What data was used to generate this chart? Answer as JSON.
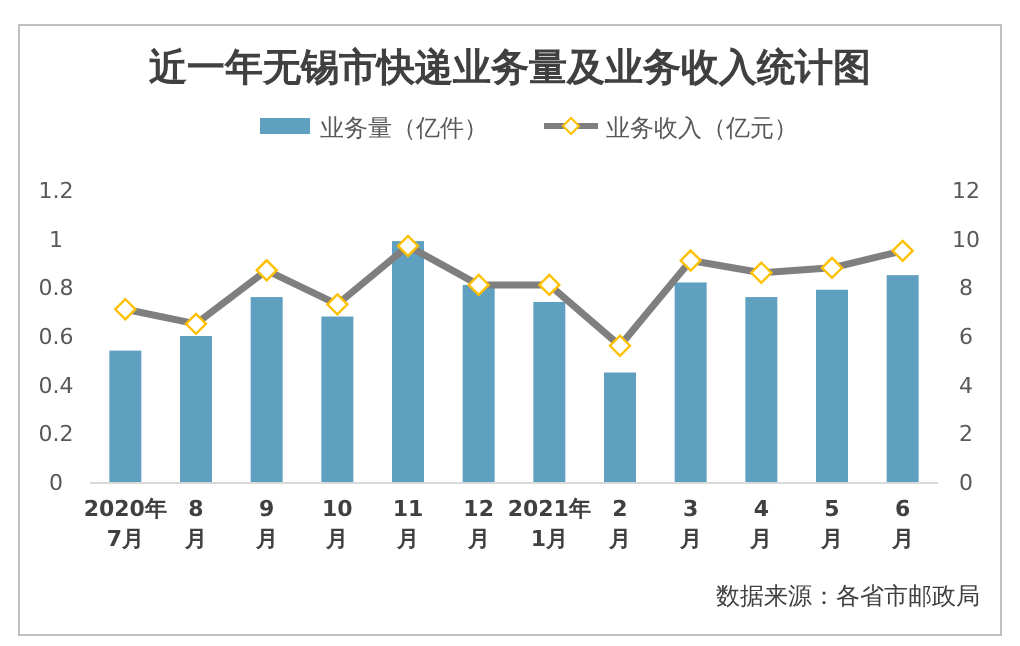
{
  "chart_data": {
    "type": "bar",
    "title": "近一年无锡市快递业务量及业务收入统计图",
    "categories": [
      "2020年\n7月",
      "8\n月",
      "9\n月",
      "10\n月",
      "11\n月",
      "12\n月",
      "2021年\n1月",
      "2\n月",
      "3\n月",
      "4\n月",
      "5\n月",
      "6\n月"
    ],
    "series": [
      {
        "name": "业务量（亿件）",
        "color": "#5fa0c0",
        "values": [
          0.54,
          0.6,
          0.76,
          0.68,
          0.99,
          0.81,
          0.74,
          0.45,
          0.82,
          0.76,
          0.79,
          0.85
        ]
      },
      {
        "name": "业务收入（亿元）",
        "type": "line",
        "axis": "y2",
        "color": "#7f7f7f",
        "marker": "diamond",
        "values": [
          7.1,
          6.5,
          8.7,
          7.3,
          9.7,
          8.1,
          8.1,
          5.6,
          9.1,
          8.6,
          8.8,
          9.5
        ]
      }
    ],
    "ylim": [
      0,
      1.2
    ],
    "yticks": [
      0,
      0.2,
      0.4,
      0.6,
      0.8,
      1,
      1.2
    ],
    "y2lim": [
      0,
      12
    ],
    "y2ticks": [
      0,
      2,
      4,
      6,
      8,
      10,
      12
    ],
    "legend": "top",
    "annotations": [
      "数据来源：各省市邮政局"
    ]
  }
}
